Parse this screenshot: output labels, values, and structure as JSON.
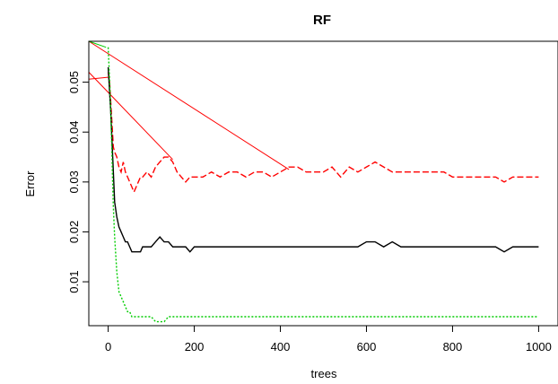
{
  "chart_data": {
    "type": "line",
    "title": "RF",
    "xlabel": "trees",
    "ylabel": "Error",
    "xlim": [
      -45,
      1045
    ],
    "ylim": [
      0.0012,
      0.0582
    ],
    "xticks": [
      0,
      200,
      400,
      600,
      800,
      1000
    ],
    "xtick_labels": [
      "0",
      "200",
      "400",
      "600",
      "800",
      "1000"
    ],
    "yticks": [
      0.01,
      0.02,
      0.03,
      0.04,
      0.05
    ],
    "ytick_labels": [
      "0.01",
      "0.02",
      "0.03",
      "0.04",
      "0.05"
    ],
    "grid": false,
    "legend": "none",
    "series": [
      {
        "key": "red",
        "color": "#ff0000",
        "dash": "7,3",
        "x": [
          0,
          2,
          4,
          6,
          8,
          10,
          12,
          15,
          20,
          25,
          30,
          35,
          40,
          45,
          50,
          55,
          60,
          65,
          70,
          75,
          80,
          90,
          100,
          110,
          120,
          130,
          140,
          150,
          160,
          170,
          180,
          190,
          200,
          220,
          240,
          260,
          280,
          300,
          320,
          340,
          360,
          380,
          400,
          420,
          440,
          460,
          480,
          500,
          520,
          540,
          560,
          580,
          600,
          620,
          640,
          660,
          680,
          700,
          720,
          740,
          760,
          780,
          800,
          820,
          840,
          860,
          880,
          900,
          920,
          940,
          960,
          980,
          1000
        ],
        "y": [
          0.052,
          0.051,
          0.049,
          0.046,
          0.043,
          0.04,
          0.037,
          0.036,
          0.035,
          0.033,
          0.032,
          0.034,
          0.032,
          0.031,
          0.03,
          0.029,
          0.028,
          0.029,
          0.03,
          0.031,
          0.031,
          0.032,
          0.031,
          0.033,
          0.034,
          0.035,
          0.035,
          0.034,
          0.032,
          0.031,
          0.03,
          0.031,
          0.031,
          0.031,
          0.032,
          0.031,
          0.032,
          0.032,
          0.031,
          0.032,
          0.032,
          0.031,
          0.032,
          0.033,
          0.033,
          0.032,
          0.032,
          0.032,
          0.033,
          0.031,
          0.033,
          0.032,
          0.033,
          0.034,
          0.033,
          0.032,
          0.032,
          0.032,
          0.032,
          0.032,
          0.032,
          0.032,
          0.031,
          0.031,
          0.031,
          0.031,
          0.031,
          0.031,
          0.03,
          0.031,
          0.031,
          0.031,
          0.031
        ]
      },
      {
        "key": "black",
        "color": "#000000",
        "dash": "",
        "x": [
          0,
          2,
          4,
          6,
          8,
          10,
          12,
          15,
          20,
          25,
          30,
          35,
          40,
          45,
          50,
          55,
          60,
          65,
          70,
          75,
          80,
          90,
          100,
          110,
          120,
          130,
          140,
          150,
          160,
          170,
          180,
          190,
          200,
          220,
          240,
          260,
          280,
          300,
          320,
          340,
          360,
          380,
          400,
          420,
          440,
          460,
          480,
          500,
          520,
          540,
          560,
          580,
          600,
          620,
          640,
          660,
          680,
          700,
          720,
          740,
          760,
          780,
          800,
          820,
          840,
          860,
          880,
          900,
          920,
          940,
          960,
          980,
          1000
        ],
        "y": [
          0.053,
          0.05,
          0.047,
          0.044,
          0.04,
          0.036,
          0.032,
          0.026,
          0.023,
          0.021,
          0.02,
          0.019,
          0.018,
          0.018,
          0.017,
          0.016,
          0.016,
          0.016,
          0.016,
          0.016,
          0.017,
          0.017,
          0.017,
          0.018,
          0.019,
          0.018,
          0.018,
          0.017,
          0.017,
          0.017,
          0.017,
          0.016,
          0.017,
          0.017,
          0.017,
          0.017,
          0.017,
          0.017,
          0.017,
          0.017,
          0.017,
          0.017,
          0.017,
          0.017,
          0.017,
          0.017,
          0.017,
          0.017,
          0.017,
          0.017,
          0.017,
          0.017,
          0.018,
          0.018,
          0.017,
          0.018,
          0.017,
          0.017,
          0.017,
          0.017,
          0.017,
          0.017,
          0.017,
          0.017,
          0.017,
          0.017,
          0.017,
          0.017,
          0.016,
          0.017,
          0.017,
          0.017,
          0.017
        ]
      },
      {
        "key": "green",
        "color": "#00cc00",
        "dash": "2,2",
        "x": [
          0,
          2,
          4,
          6,
          8,
          10,
          12,
          15,
          20,
          25,
          30,
          35,
          40,
          45,
          50,
          55,
          60,
          65,
          70,
          75,
          80,
          90,
          100,
          110,
          120,
          130,
          140,
          150,
          160,
          170,
          180,
          190,
          200,
          220,
          240,
          260,
          280,
          300,
          320,
          340,
          360,
          380,
          400,
          420,
          440,
          460,
          480,
          500,
          520,
          540,
          560,
          580,
          600,
          620,
          640,
          660,
          680,
          700,
          720,
          740,
          760,
          780,
          800,
          820,
          840,
          860,
          880,
          900,
          920,
          940,
          960,
          980,
          1000
        ],
        "y": [
          0.057,
          0.053,
          0.049,
          0.044,
          0.038,
          0.031,
          0.025,
          0.019,
          0.012,
          0.008,
          0.007,
          0.006,
          0.005,
          0.004,
          0.004,
          0.003,
          0.003,
          0.003,
          0.003,
          0.003,
          0.003,
          0.003,
          0.003,
          0.002,
          0.002,
          0.002,
          0.003,
          0.003,
          0.003,
          0.003,
          0.003,
          0.003,
          0.003,
          0.003,
          0.003,
          0.003,
          0.003,
          0.003,
          0.003,
          0.003,
          0.003,
          0.003,
          0.003,
          0.003,
          0.003,
          0.003,
          0.003,
          0.003,
          0.003,
          0.003,
          0.003,
          0.003,
          0.003,
          0.003,
          0.003,
          0.003,
          0.003,
          0.003,
          0.003,
          0.003,
          0.003,
          0.003,
          0.003,
          0.003,
          0.003,
          0.003,
          0.003,
          0.003,
          0.003,
          0.003,
          0.003,
          0.003,
          0.003
        ]
      }
    ],
    "connectors": [
      {
        "color": "#ff0000",
        "points": [
          [
            -45,
            0.0582
          ],
          [
            420,
            0.0325
          ]
        ]
      },
      {
        "color": "#ff0000",
        "points": [
          [
            -45,
            0.052
          ],
          [
            150,
            0.0345
          ]
        ]
      },
      {
        "color": "#ff0000",
        "points": [
          [
            -45,
            0.0506
          ],
          [
            2,
            0.051
          ]
        ]
      },
      {
        "color": "#00cc00",
        "points": [
          [
            -45,
            0.0582
          ],
          [
            -5,
            0.057
          ]
        ]
      }
    ]
  }
}
